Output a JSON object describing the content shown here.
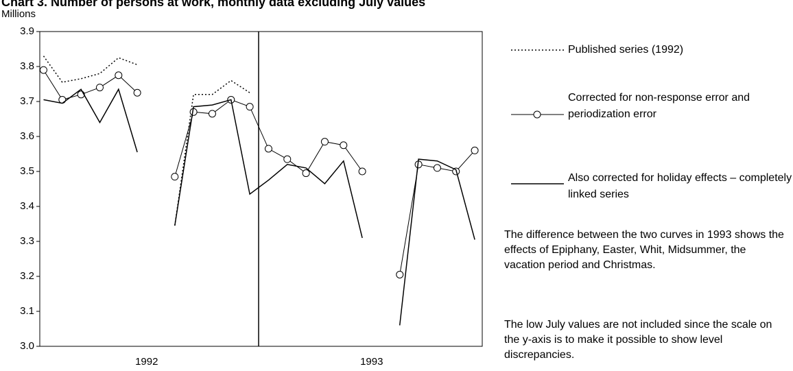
{
  "chart_data": {
    "type": "line",
    "title": "Chart 3. Number of persons at work, monthly data excluding July values",
    "y_label": "Millions",
    "categories": [
      null,
      null,
      null,
      null,
      null,
      null,
      null,
      null,
      null,
      null,
      null,
      null,
      null,
      null,
      null,
      null,
      null,
      null,
      null,
      null,
      null,
      null,
      null,
      null
    ],
    "groups": [
      "1992",
      "1993"
    ],
    "ylim": [
      3.0,
      3.9
    ],
    "yticks": [
      {
        "value": 3,
        "label": "3.0"
      },
      3.1,
      3.2,
      3.3,
      3.4,
      3.5,
      3.6,
      3.7,
      3.8,
      3.9
    ],
    "series": [
      {
        "name": "Published series (1992)",
        "color": "#000000",
        "linestyle": "dotted",
        "values": [
          3.83,
          3.755,
          3.765,
          3.78,
          3.825,
          3.805,
          null,
          3.345,
          3.72,
          3.72,
          3.76,
          3.725,
          null,
          null,
          null,
          null,
          null,
          null,
          null,
          null,
          null,
          null,
          null,
          null
        ]
      },
      {
        "name": "Corrected for non-response error and periodization error",
        "color": "#000000",
        "linestyle": "solid",
        "marker": "circle",
        "values": [
          3.79,
          3.705,
          3.72,
          3.74,
          3.775,
          3.725,
          null,
          3.485,
          3.67,
          3.665,
          3.705,
          3.685,
          3.565,
          3.535,
          3.495,
          3.585,
          3.575,
          3.5,
          null,
          3.205,
          3.52,
          3.51,
          3.5,
          3.56
        ]
      },
      {
        "name": "Also corrected for holiday effects – completely linked series",
        "color": "#000000",
        "linestyle": "solid",
        "values": [
          3.705,
          3.695,
          3.735,
          3.64,
          3.735,
          3.555,
          null,
          3.345,
          3.685,
          3.69,
          3.705,
          3.435,
          3.475,
          3.52,
          3.51,
          3.465,
          3.53,
          3.31,
          null,
          3.06,
          3.535,
          3.53,
          3.505,
          3.305
        ]
      }
    ],
    "notes": [
      "The difference between the two curves in 1993 shows the effects of Epiphany, Easter, Whit, Midsummer, the vacation period and Christmas.",
      "The low July values are not included since the scale on the y-axis is to make it possible to show level discrepancies."
    ]
  }
}
